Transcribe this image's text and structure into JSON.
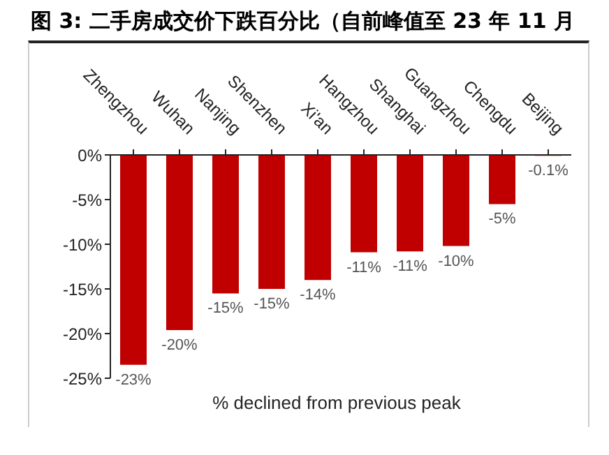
{
  "chart_data": {
    "type": "bar",
    "title": "图 3: 二手房成交价下跌百分比（自前峰值至 23 年 11 月",
    "xlabel": "% declined from previous peak",
    "categories": [
      "Zhengzhou",
      "Wuhan",
      "Nanjing",
      "Shenzhen",
      "Xi'an",
      "Hangzhou",
      "Shanghai",
      "Guangzhou",
      "Chengdu",
      "Beijing"
    ],
    "values": [
      -23.5,
      -19.6,
      -15.5,
      -15.0,
      -14.0,
      -10.9,
      -10.8,
      -10.2,
      -5.5,
      -0.1
    ],
    "value_labels": [
      "-23%",
      "-20%",
      "-15%",
      "-15%",
      "-14%",
      "-11%",
      "-11%",
      "-10%",
      "-5%",
      "-0.1%"
    ],
    "color": "#c00000",
    "ylim": [
      -25,
      0
    ],
    "yticks": [
      {
        "value": 0,
        "label": "0%"
      },
      {
        "value": -5,
        "label": "-5%"
      },
      {
        "value": -10,
        "label": "-10%"
      },
      {
        "value": -15,
        "label": "-15%"
      },
      {
        "value": -20,
        "label": "-20%"
      },
      {
        "value": -25,
        "label": "-25%"
      }
    ],
    "grid": false,
    "legend": false
  }
}
